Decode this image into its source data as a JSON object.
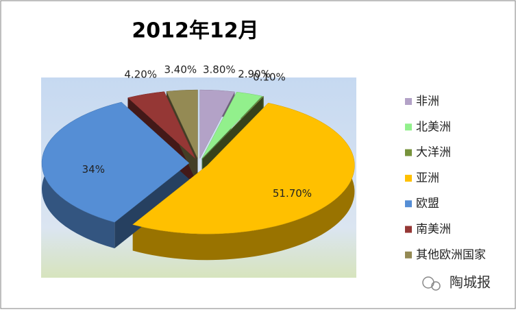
{
  "chart_data": {
    "type": "pie3d",
    "title": "2012年12月",
    "categories": [
      "非洲",
      "北美洲",
      "大洋洲",
      "亚洲",
      "欧盟",
      "南美洲",
      "其他欧洲国家"
    ],
    "values": [
      3.8,
      2.9,
      0.1,
      51.7,
      34,
      4.2,
      3.4
    ],
    "value_labels": [
      "3.80%",
      "2.90%",
      "0.10%",
      "51.70%",
      "34%",
      "4.20%",
      "3.40%"
    ],
    "colors": [
      "#b3a2c7",
      "#92f08c",
      "#77933c",
      "#ffc000",
      "#558ed5",
      "#953735",
      "#948a54"
    ],
    "legend": "right"
  },
  "watermark": "陶城报"
}
